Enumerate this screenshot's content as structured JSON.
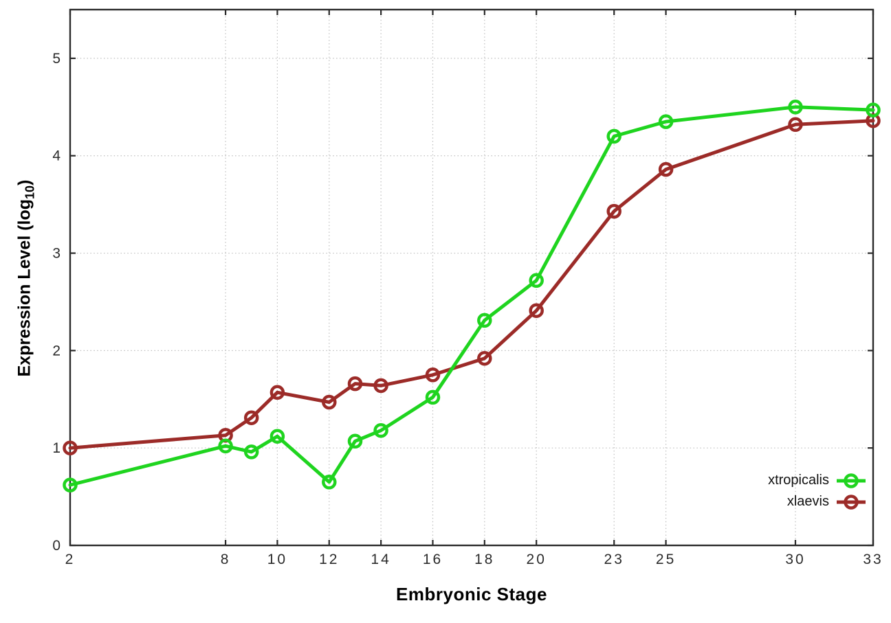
{
  "chart_data": {
    "type": "line",
    "title": "",
    "xlabel": "Embryonic Stage",
    "ylabel": "Expression Level (log10)",
    "ylabel_parts": {
      "prefix": "Expression Level (log",
      "sub": "10",
      "suffix": ")"
    },
    "xlim": [
      2,
      33
    ],
    "ylim": [
      0,
      5.5
    ],
    "x_ticks": [
      2,
      8,
      10,
      12,
      14,
      16,
      18,
      20,
      23,
      25,
      30,
      33
    ],
    "y_ticks": [
      0,
      1,
      2,
      3,
      4,
      5
    ],
    "x_gridlines": [
      8,
      10,
      12,
      14,
      16,
      18,
      20,
      23,
      25,
      30,
      33
    ],
    "y_gridlines": [
      1,
      2,
      3,
      4,
      5
    ],
    "grid": "dotted",
    "legend_position": "bottom-right-inside",
    "marker": "open-circle",
    "series": [
      {
        "name": "xtropicalis",
        "color": "#1fd41f",
        "points": [
          [
            2,
            0.62
          ],
          [
            8,
            1.02
          ],
          [
            9,
            0.96
          ],
          [
            10,
            1.12
          ],
          [
            12,
            0.65
          ],
          [
            13,
            1.07
          ],
          [
            14,
            1.18
          ],
          [
            16,
            1.52
          ],
          [
            18,
            2.31
          ],
          [
            20,
            2.72
          ],
          [
            23,
            4.2
          ],
          [
            25,
            4.35
          ],
          [
            30,
            4.5
          ],
          [
            33,
            4.47
          ]
        ]
      },
      {
        "name": "xlaevis",
        "color": "#9c2b28",
        "points": [
          [
            2,
            1.0
          ],
          [
            8,
            1.13
          ],
          [
            9,
            1.31
          ],
          [
            10,
            1.57
          ],
          [
            12,
            1.47
          ],
          [
            13,
            1.66
          ],
          [
            14,
            1.64
          ],
          [
            16,
            1.75
          ],
          [
            18,
            1.92
          ],
          [
            20,
            2.41
          ],
          [
            23,
            3.43
          ],
          [
            25,
            3.86
          ],
          [
            30,
            4.32
          ],
          [
            33,
            4.36
          ]
        ]
      }
    ]
  }
}
